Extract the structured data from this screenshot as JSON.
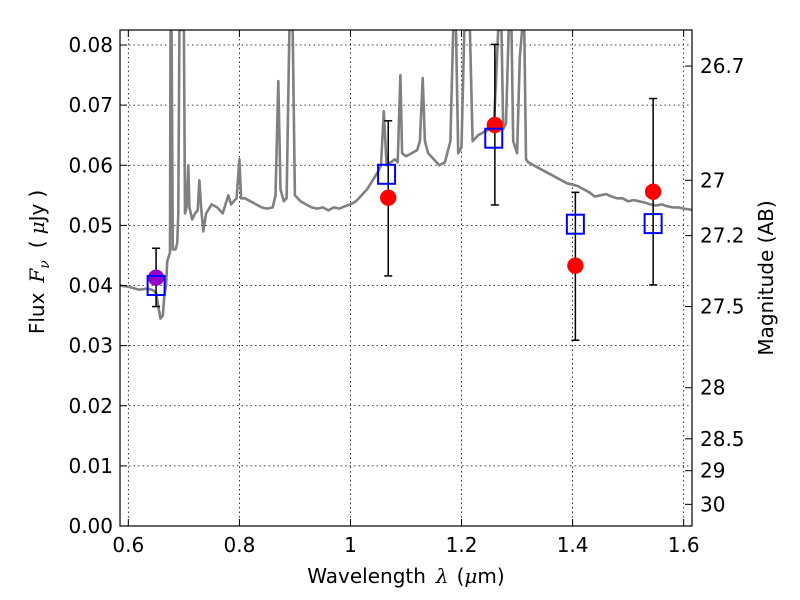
{
  "chart_data": {
    "type": "scatter",
    "title": "",
    "xlabel_text": "Wavelength",
    "xlabel_symbol": "λ",
    "xlabel_unit_open": "(",
    "xlabel_unit_mu": "μ",
    "xlabel_unit_m": "m",
    "xlabel_unit_close": ")",
    "ylabel_text": "Flux",
    "ylabel_symbol": "F",
    "ylabel_sub": "ν",
    "ylabel_unit_open": "(",
    "ylabel_unit_mu": "μ",
    "ylabel_unit_jy": "Jy",
    "ylabel_unit_close": ")",
    "y2label": "Magnitude (AB)",
    "xlim": [
      0.585,
      1.615
    ],
    "ylim": [
      0.0,
      0.0825
    ],
    "grid": true,
    "x_ticks": [
      {
        "value": 0.6,
        "label": "0.6"
      },
      {
        "value": 0.8,
        "label": "0.8"
      },
      {
        "value": 1.0,
        "label": "1"
      },
      {
        "value": 1.2,
        "label": "1.2"
      },
      {
        "value": 1.4,
        "label": "1.4"
      },
      {
        "value": 1.6,
        "label": "1.6"
      }
    ],
    "y_ticks": [
      {
        "value": 0.0,
        "label": "0.00"
      },
      {
        "value": 0.01,
        "label": "0.01"
      },
      {
        "value": 0.02,
        "label": "0.02"
      },
      {
        "value": 0.03,
        "label": "0.03"
      },
      {
        "value": 0.04,
        "label": "0.04"
      },
      {
        "value": 0.05,
        "label": "0.05"
      },
      {
        "value": 0.06,
        "label": "0.06"
      },
      {
        "value": 0.07,
        "label": "0.07"
      },
      {
        "value": 0.08,
        "label": "0.08"
      }
    ],
    "y2_ticks": [
      {
        "flux": 0.0765,
        "label": "26.7"
      },
      {
        "flux": 0.0575,
        "label": "27"
      },
      {
        "flux": 0.0483,
        "label": "27.2"
      },
      {
        "flux": 0.0365,
        "label": "27.5"
      },
      {
        "flux": 0.023,
        "label": "28"
      },
      {
        "flux": 0.0145,
        "label": "28.5"
      },
      {
        "flux": 0.0092,
        "label": "29"
      },
      {
        "flux": 0.0036,
        "label": "30"
      }
    ],
    "colors": {
      "spectrum": "#808080",
      "observed": "#ff0000",
      "model": "#0000ff",
      "errorbar": "#000000",
      "first_point": "#9900cc"
    },
    "series": [
      {
        "name": "model_spectrum",
        "style": "line",
        "points": [
          [
            0.585,
            0.04
          ],
          [
            0.6,
            0.0398
          ],
          [
            0.62,
            0.0393
          ],
          [
            0.635,
            0.0395
          ],
          [
            0.645,
            0.0392
          ],
          [
            0.65,
            0.0387
          ],
          [
            0.655,
            0.036
          ],
          [
            0.658,
            0.0345
          ],
          [
            0.662,
            0.035
          ],
          [
            0.665,
            0.0385
          ],
          [
            0.668,
            0.04
          ],
          [
            0.67,
            0.044
          ],
          [
            0.675,
            0.0455
          ],
          [
            0.676,
            0.0825
          ],
          [
            0.678,
            0.0825
          ],
          [
            0.68,
            0.046
          ],
          [
            0.685,
            0.046
          ],
          [
            0.688,
            0.047
          ],
          [
            0.69,
            0.052
          ],
          [
            0.692,
            0.0825
          ],
          [
            0.7,
            0.0825
          ],
          [
            0.702,
            0.052
          ],
          [
            0.705,
            0.053
          ],
          [
            0.708,
            0.06
          ],
          [
            0.71,
            0.053
          ],
          [
            0.715,
            0.051
          ],
          [
            0.72,
            0.052
          ],
          [
            0.725,
            0.0525
          ],
          [
            0.728,
            0.0575
          ],
          [
            0.731,
            0.053
          ],
          [
            0.735,
            0.049
          ],
          [
            0.74,
            0.052
          ],
          [
            0.75,
            0.0535
          ],
          [
            0.76,
            0.053
          ],
          [
            0.77,
            0.052
          ],
          [
            0.78,
            0.055
          ],
          [
            0.785,
            0.0535
          ],
          [
            0.79,
            0.054
          ],
          [
            0.795,
            0.0545
          ],
          [
            0.8,
            0.061
          ],
          [
            0.803,
            0.0545
          ],
          [
            0.81,
            0.0545
          ],
          [
            0.82,
            0.054
          ],
          [
            0.83,
            0.0535
          ],
          [
            0.84,
            0.053
          ],
          [
            0.85,
            0.0528
          ],
          [
            0.86,
            0.053
          ],
          [
            0.865,
            0.055
          ],
          [
            0.87,
            0.074
          ],
          [
            0.874,
            0.056
          ],
          [
            0.88,
            0.054
          ],
          [
            0.885,
            0.0545
          ],
          [
            0.89,
            0.0825
          ],
          [
            0.896,
            0.0825
          ],
          [
            0.9,
            0.055
          ],
          [
            0.91,
            0.054
          ],
          [
            0.92,
            0.0535
          ],
          [
            0.93,
            0.053
          ],
          [
            0.94,
            0.0528
          ],
          [
            0.95,
            0.053
          ],
          [
            0.96,
            0.0525
          ],
          [
            0.97,
            0.053
          ],
          [
            0.98,
            0.0528
          ],
          [
            0.99,
            0.0532
          ],
          [
            1.0,
            0.0535
          ],
          [
            1.01,
            0.054
          ],
          [
            1.02,
            0.055
          ],
          [
            1.03,
            0.056
          ],
          [
            1.04,
            0.0575
          ],
          [
            1.05,
            0.059
          ],
          [
            1.055,
            0.06
          ],
          [
            1.06,
            0.069
          ],
          [
            1.065,
            0.06
          ],
          [
            1.08,
            0.061
          ],
          [
            1.085,
            0.0605
          ],
          [
            1.09,
            0.075
          ],
          [
            1.093,
            0.062
          ],
          [
            1.1,
            0.0615
          ],
          [
            1.11,
            0.062
          ],
          [
            1.12,
            0.0625
          ],
          [
            1.125,
            0.064
          ],
          [
            1.13,
            0.0745
          ],
          [
            1.134,
            0.064
          ],
          [
            1.14,
            0.062
          ],
          [
            1.15,
            0.061
          ],
          [
            1.16,
            0.06
          ],
          [
            1.17,
            0.0605
          ],
          [
            1.18,
            0.064
          ],
          [
            1.185,
            0.0825
          ],
          [
            1.19,
            0.0825
          ],
          [
            1.194,
            0.062
          ],
          [
            1.2,
            0.063
          ],
          [
            1.205,
            0.0825
          ],
          [
            1.215,
            0.0825
          ],
          [
            1.22,
            0.064
          ],
          [
            1.23,
            0.065
          ],
          [
            1.24,
            0.0655
          ],
          [
            1.25,
            0.066
          ],
          [
            1.258,
            0.066
          ],
          [
            1.262,
            0.074
          ],
          [
            1.266,
            0.0825
          ],
          [
            1.272,
            0.0825
          ],
          [
            1.275,
            0.066
          ],
          [
            1.28,
            0.067
          ],
          [
            1.285,
            0.0825
          ],
          [
            1.29,
            0.0825
          ],
          [
            1.293,
            0.064
          ],
          [
            1.3,
            0.062
          ],
          [
            1.305,
            0.078
          ],
          [
            1.309,
            0.0825
          ],
          [
            1.313,
            0.0825
          ],
          [
            1.316,
            0.061
          ],
          [
            1.32,
            0.0605
          ],
          [
            1.33,
            0.06
          ],
          [
            1.34,
            0.0595
          ],
          [
            1.35,
            0.059
          ],
          [
            1.36,
            0.0585
          ],
          [
            1.37,
            0.058
          ],
          [
            1.38,
            0.0575
          ],
          [
            1.39,
            0.057
          ],
          [
            1.4,
            0.0568
          ],
          [
            1.41,
            0.0565
          ],
          [
            1.42,
            0.056
          ],
          [
            1.43,
            0.0555
          ],
          [
            1.44,
            0.0548
          ],
          [
            1.45,
            0.055
          ],
          [
            1.46,
            0.0552
          ],
          [
            1.47,
            0.0548
          ],
          [
            1.48,
            0.0545
          ],
          [
            1.49,
            0.0545
          ],
          [
            1.5,
            0.054
          ],
          [
            1.51,
            0.0542
          ],
          [
            1.52,
            0.054
          ],
          [
            1.53,
            0.0538
          ],
          [
            1.54,
            0.0535
          ],
          [
            1.55,
            0.0533
          ],
          [
            1.56,
            0.0535
          ],
          [
            1.57,
            0.0532
          ],
          [
            1.58,
            0.053
          ],
          [
            1.59,
            0.053
          ],
          [
            1.6,
            0.0528
          ],
          [
            1.615,
            0.0526
          ]
        ]
      },
      {
        "name": "model_photometry",
        "style": "open-square",
        "points": [
          [
            0.65,
            0.04
          ],
          [
            1.065,
            0.0585
          ],
          [
            1.258,
            0.0645
          ],
          [
            1.405,
            0.0502
          ],
          [
            1.545,
            0.0503
          ]
        ]
      },
      {
        "name": "observed_flux",
        "style": "filled-circle",
        "points": [
          {
            "x": 0.65,
            "y": 0.0413,
            "yerr_low": 0.0365,
            "yerr_high": 0.0462
          },
          {
            "x": 1.068,
            "y": 0.0546,
            "yerr_low": 0.0416,
            "yerr_high": 0.0674
          },
          {
            "x": 1.26,
            "y": 0.0667,
            "yerr_low": 0.0534,
            "yerr_high": 0.0801
          },
          {
            "x": 1.405,
            "y": 0.0433,
            "yerr_low": 0.0309,
            "yerr_high": 0.0555
          },
          {
            "x": 1.545,
            "y": 0.0556,
            "yerr_low": 0.0401,
            "yerr_high": 0.0711
          }
        ]
      }
    ]
  }
}
